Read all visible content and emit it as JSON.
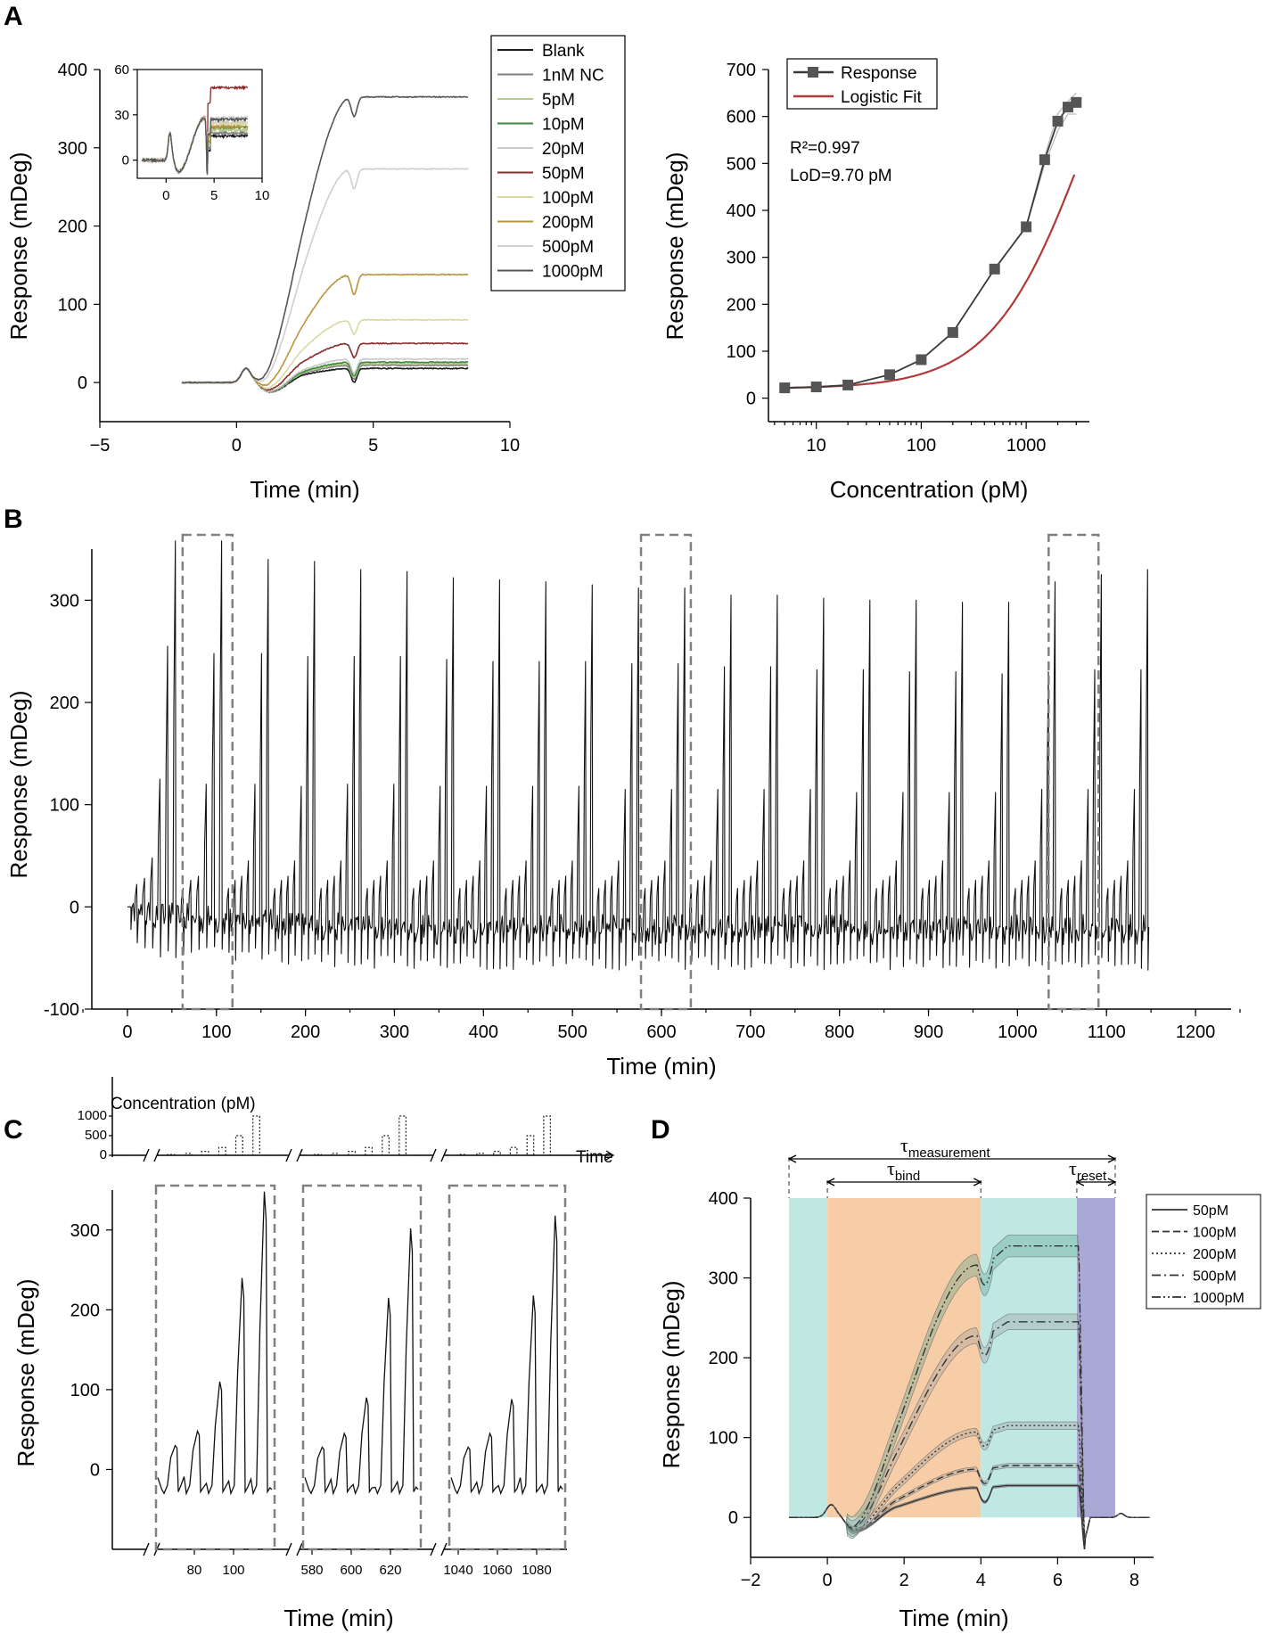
{
  "panels": {
    "A": "A",
    "B": "B",
    "C": "C",
    "D": "D"
  },
  "chart_data": [
    {
      "id": "A1",
      "type": "line",
      "xlabel": "Time (min)",
      "ylabel": "Response (mDeg)",
      "xlim": [
        -5,
        10
      ],
      "ylim": [
        -50,
        400
      ],
      "xticks": [
        "−5",
        "0",
        "5",
        "10"
      ],
      "yticks": [
        "0",
        "100",
        "200",
        "300",
        "400"
      ],
      "series": [
        {
          "name": "Blank",
          "color": "#1a1a1a",
          "final": 18
        },
        {
          "name": "1nM NC",
          "color": "#7f7f7f",
          "final": 22
        },
        {
          "name": "5pM",
          "color": "#b5c98a",
          "final": 24
        },
        {
          "name": "10pM",
          "color": "#3d8a3d",
          "final": 26
        },
        {
          "name": "20pM",
          "color": "#c9c9c9",
          "final": 30
        },
        {
          "name": "50pM",
          "color": "#8b2a2a",
          "final": 50
        },
        {
          "name": "100pM",
          "color": "#dad9a2",
          "final": 80
        },
        {
          "name": "200pM",
          "color": "#b8963f",
          "final": 138
        },
        {
          "name": "500pM",
          "color": "#cfcfcf",
          "final": 273
        },
        {
          "name": "1000pM",
          "color": "#555555",
          "final": 365
        }
      ],
      "inset": {
        "xlim": [
          -3,
          10
        ],
        "ylim": [
          -12,
          60
        ],
        "xticks": [
          "0",
          "5",
          "10"
        ],
        "yticks": [
          "0",
          "30",
          "60"
        ]
      }
    },
    {
      "id": "A2",
      "type": "line",
      "xlabel": "Concentration (pM)",
      "ylabel": "Response (mDeg)",
      "xscale": "log",
      "xlim": [
        3.5,
        4000
      ],
      "ylim": [
        -50,
        700
      ],
      "xticks": [
        "10",
        "100",
        "1000"
      ],
      "yticks": [
        "0",
        "100",
        "200",
        "300",
        "400",
        "500",
        "600",
        "700"
      ],
      "series": [
        {
          "name": "Response",
          "color": "#3a3a3a",
          "x": [
            5,
            10,
            20,
            50,
            100,
            200,
            500,
            1000,
            1500,
            2000,
            2500,
            3000
          ],
          "y": [
            22,
            24,
            28,
            50,
            82,
            140,
            275,
            365,
            508,
            590,
            620,
            630
          ]
        },
        {
          "name": "Logistic Fit",
          "color": "#b03a3a"
        }
      ],
      "annotations": [
        "R²=0.997",
        "LoD=9.70 pM"
      ]
    },
    {
      "id": "B",
      "type": "line",
      "xlabel": "Time (min)",
      "ylabel": "Response (mDeg)",
      "xlim": [
        -40,
        1240
      ],
      "ylim": [
        -100,
        350
      ],
      "xticks": [
        "0",
        "100",
        "200",
        "300",
        "400",
        "500",
        "600",
        "700",
        "800",
        "900",
        "1000",
        "1100",
        "1200"
      ],
      "yticks": [
        "-100",
        "0",
        "100",
        "200",
        "300"
      ],
      "cycle_peaks": [
        [
          48,
          255,
          358
        ],
        [
          120,
          248,
          358
        ],
        [
          45,
          120,
          248,
          340
        ],
        [
          45,
          118,
          245,
          338
        ],
        [
          45,
          120,
          245,
          330
        ],
        [
          45,
          120,
          245,
          328
        ],
        [
          45,
          118,
          242,
          322
        ],
        [
          45,
          118,
          240,
          320
        ],
        [
          45,
          118,
          240,
          318
        ],
        [
          45,
          118,
          240,
          315
        ],
        [
          45,
          115,
          238,
          312
        ],
        [
          45,
          115,
          238,
          312
        ],
        [
          45,
          115,
          235,
          305
        ],
        [
          45,
          115,
          235,
          305
        ],
        [
          45,
          115,
          232,
          302
        ],
        [
          45,
          112,
          232,
          300
        ],
        [
          45,
          112,
          230,
          300
        ],
        [
          45,
          112,
          230,
          298
        ],
        [
          45,
          112,
          228,
          298
        ],
        [
          45,
          115,
          230,
          318
        ],
        [
          45,
          115,
          232,
          325
        ],
        [
          45,
          115,
          232,
          330
        ]
      ],
      "highlight_windows": [
        [
          62,
          118
        ],
        [
          577,
          633
        ],
        [
          1035,
          1091
        ]
      ]
    },
    {
      "id": "C",
      "type": "line",
      "ylabel": "Response (mDeg)",
      "xlabel": "Time (min)",
      "ylim": [
        -100,
        350
      ],
      "yticks": [
        "0",
        "100",
        "200",
        "300"
      ],
      "segments": [
        {
          "xticks": [
            "80",
            "100"
          ],
          "peaks": [
            30,
            48,
            110,
            240,
            348
          ]
        },
        {
          "xticks": [
            "580",
            "600",
            "620"
          ],
          "peaks": [
            28,
            45,
            90,
            215,
            302
          ]
        },
        {
          "xticks": [
            "1040",
            "1060",
            "1080"
          ],
          "peaks": [
            28,
            45,
            88,
            218,
            318
          ]
        }
      ],
      "conc_axis": {
        "title": "Concentration (pM)",
        "yticks": [
          "0",
          "500",
          "1000"
        ],
        "xlabel": "Time",
        "values": [
          5,
          10,
          20,
          50,
          100,
          200,
          500,
          1000
        ]
      }
    },
    {
      "id": "D",
      "type": "line",
      "xlabel": "Time (min)",
      "ylabel": "Response (mDeg)",
      "xlim": [
        -2,
        8.5
      ],
      "ylim": [
        -50,
        400
      ],
      "xticks": [
        "−2",
        "0",
        "2",
        "4",
        "6",
        "8"
      ],
      "yticks": [
        "0",
        "100",
        "200",
        "300",
        "400"
      ],
      "series": [
        {
          "name": "50pM",
          "style": "solid",
          "plateau": 40
        },
        {
          "name": "100pM",
          "style": "dashed",
          "plateau": 65
        },
        {
          "name": "200pM",
          "style": "dotted",
          "plateau": 115
        },
        {
          "name": "500pM",
          "style": "dashdot",
          "plateau": 245
        },
        {
          "name": "1000pM",
          "style": "dashdotdot",
          "plateau": 340
        }
      ],
      "regions": [
        {
          "from": -1,
          "to": 0,
          "color": "#bfe8e3"
        },
        {
          "from": 0,
          "to": 4,
          "color": "#f6cda6"
        },
        {
          "from": 4,
          "to": 6.5,
          "color": "#bfe8e3"
        },
        {
          "from": 6.5,
          "to": 7.5,
          "color": "#aaa9d6"
        }
      ],
      "annotations": {
        "measurement": "τ",
        "measurement_sub": "measurement",
        "bind": "τ",
        "bind_sub": "bind",
        "reset": "τ",
        "reset_sub": "reset"
      }
    }
  ]
}
